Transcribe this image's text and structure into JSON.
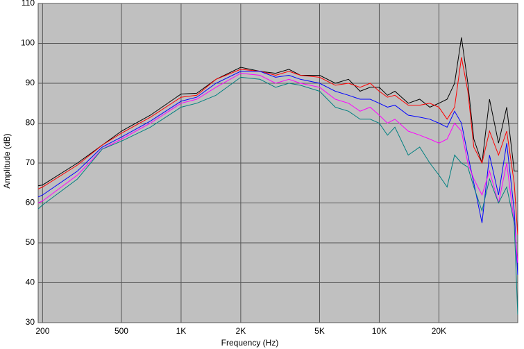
{
  "chart_data": {
    "type": "line",
    "x_label": "Frequency (Hz)",
    "y_label": "Amplitude (dB)",
    "xscale": "log",
    "grid": true,
    "background": "#c0c0c0",
    "xlim": [
      190,
      50000
    ],
    "ylim": [
      30,
      110
    ],
    "xticks": [
      200,
      500,
      {
        "value": 1000,
        "label": "1K"
      },
      {
        "value": 2000,
        "label": "2K"
      },
      {
        "value": 5000,
        "label": "5K"
      },
      {
        "value": 10000,
        "label": "10K"
      },
      {
        "value": 20000,
        "label": "20K"
      }
    ],
    "yticks": [
      30,
      40,
      50,
      60,
      70,
      80,
      90,
      100,
      110
    ],
    "x": [
      190,
      200,
      300,
      400,
      500,
      700,
      1000,
      1200,
      1500,
      2000,
      2500,
      3000,
      3500,
      4000,
      5000,
      6000,
      7000,
      8000,
      9000,
      10000,
      11000,
      12000,
      14000,
      16000,
      18000,
      20000,
      22000,
      24000,
      26000,
      28000,
      30000,
      33000,
      36000,
      40000,
      44000,
      48000,
      50000
    ],
    "series": [
      {
        "color": "#000000",
        "values": [
          64.3,
          64.5,
          70,
          74.5,
          78,
          82,
          87.3,
          87.5,
          91,
          94,
          93,
          92.5,
          93.5,
          92,
          92,
          90,
          91,
          88,
          89,
          89,
          87,
          88,
          85,
          86,
          84,
          85,
          86,
          90,
          101.5,
          90,
          76,
          70,
          86,
          75,
          84,
          68,
          68
        ]
      },
      {
        "color": "#ff0000",
        "values": [
          63.5,
          64,
          69.5,
          74.5,
          77.5,
          81.5,
          86.5,
          87,
          91,
          93.5,
          93,
          92,
          93,
          92,
          91.5,
          89.5,
          90,
          89,
          90,
          88,
          86.5,
          87,
          84.5,
          84.5,
          85,
          84,
          81,
          84,
          96.5,
          88,
          74,
          70,
          78,
          72,
          78,
          65,
          52
        ]
      },
      {
        "color": "#0000ff",
        "values": [
          61.5,
          62,
          68,
          74,
          76.5,
          80.5,
          85.5,
          86.5,
          90,
          93,
          93,
          91.5,
          92,
          91,
          90,
          88,
          87,
          86,
          86,
          85,
          84,
          84.5,
          82,
          81.5,
          81,
          80,
          79,
          83,
          80,
          72,
          65,
          55,
          72,
          62,
          75,
          58,
          42
        ]
      },
      {
        "color": "#ff00ff",
        "values": [
          60,
          60.5,
          67,
          73.5,
          76,
          80,
          85,
          86,
          89,
          92.5,
          92,
          90,
          91,
          90,
          89,
          86,
          85,
          83,
          84,
          82,
          80,
          81,
          78,
          77,
          76,
          75,
          76,
          80,
          78,
          70,
          66,
          62,
          68,
          60,
          70,
          55,
          45
        ]
      },
      {
        "color": "#008080",
        "values": [
          58.5,
          59.5,
          66,
          73.5,
          75.5,
          79,
          84,
          85,
          87,
          91.5,
          91,
          89,
          90,
          89.5,
          88,
          84,
          83,
          81,
          81,
          80,
          77,
          79,
          72,
          74,
          70,
          67,
          64,
          72,
          70,
          69,
          64,
          58,
          66,
          60,
          64,
          55,
          32
        ]
      }
    ]
  }
}
